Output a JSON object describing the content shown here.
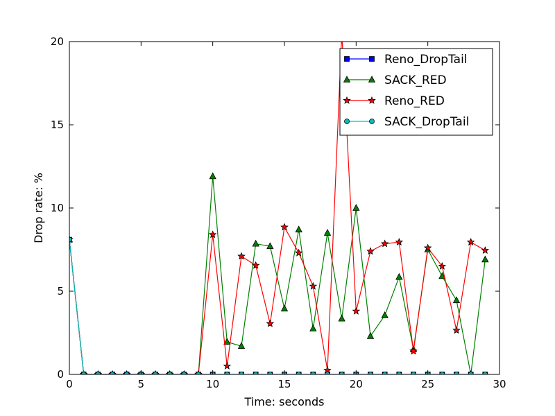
{
  "chart_data": {
    "type": "line",
    "title": "",
    "xlabel": "Time: seconds",
    "ylabel": "Drop rate: %",
    "xlim": [
      0,
      30
    ],
    "ylim": [
      0,
      20
    ],
    "xticks": [
      0,
      5,
      10,
      15,
      20,
      25,
      30
    ],
    "yticks": [
      0,
      5,
      10,
      15,
      20
    ],
    "grid": false,
    "legend_position": "top-right",
    "x": [
      0,
      1,
      2,
      3,
      4,
      5,
      6,
      7,
      8,
      9,
      10,
      11,
      12,
      13,
      14,
      15,
      16,
      17,
      18,
      19,
      20,
      21,
      22,
      23,
      24,
      25,
      26,
      27,
      28,
      29
    ],
    "series": [
      {
        "name": "Reno_DropTail",
        "color": "#0000ff",
        "marker": "square",
        "values": [
          8.1,
          0,
          0,
          0,
          0,
          0,
          0,
          0,
          0,
          0,
          0,
          0,
          0,
          0,
          0,
          0,
          0,
          0,
          0,
          0,
          0,
          0,
          0,
          0,
          0,
          0,
          0,
          0,
          0,
          0
        ]
      },
      {
        "name": "SACK_RED",
        "color": "#008000",
        "marker": "triangle",
        "values": [
          8.1,
          0,
          0,
          0,
          0,
          0,
          0,
          0,
          0,
          0,
          11.9,
          1.95,
          1.7,
          7.85,
          7.7,
          3.95,
          8.7,
          2.75,
          8.5,
          3.35,
          10.0,
          2.3,
          3.55,
          5.85,
          1.5,
          7.5,
          5.9,
          4.45,
          0,
          6.9
        ]
      },
      {
        "name": "Reno_RED",
        "color": "#ff0000",
        "marker": "star",
        "values": [
          8.1,
          0,
          0,
          0,
          0,
          0,
          0,
          0,
          0,
          0,
          8.4,
          0.5,
          7.1,
          6.55,
          3.05,
          8.85,
          7.3,
          5.3,
          0.25,
          20.5,
          3.8,
          7.4,
          7.85,
          7.95,
          1.4,
          7.6,
          6.5,
          2.65,
          7.95,
          7.45
        ]
      },
      {
        "name": "SACK_DropTail",
        "color": "#00bfbf",
        "marker": "circle",
        "values": [
          8.1,
          0,
          0,
          0,
          0,
          0,
          0,
          0,
          0,
          0,
          0,
          0,
          0,
          0,
          0,
          0,
          0,
          0,
          0,
          0,
          0,
          0,
          0,
          0,
          0,
          0,
          0,
          0,
          0,
          0
        ]
      }
    ]
  }
}
